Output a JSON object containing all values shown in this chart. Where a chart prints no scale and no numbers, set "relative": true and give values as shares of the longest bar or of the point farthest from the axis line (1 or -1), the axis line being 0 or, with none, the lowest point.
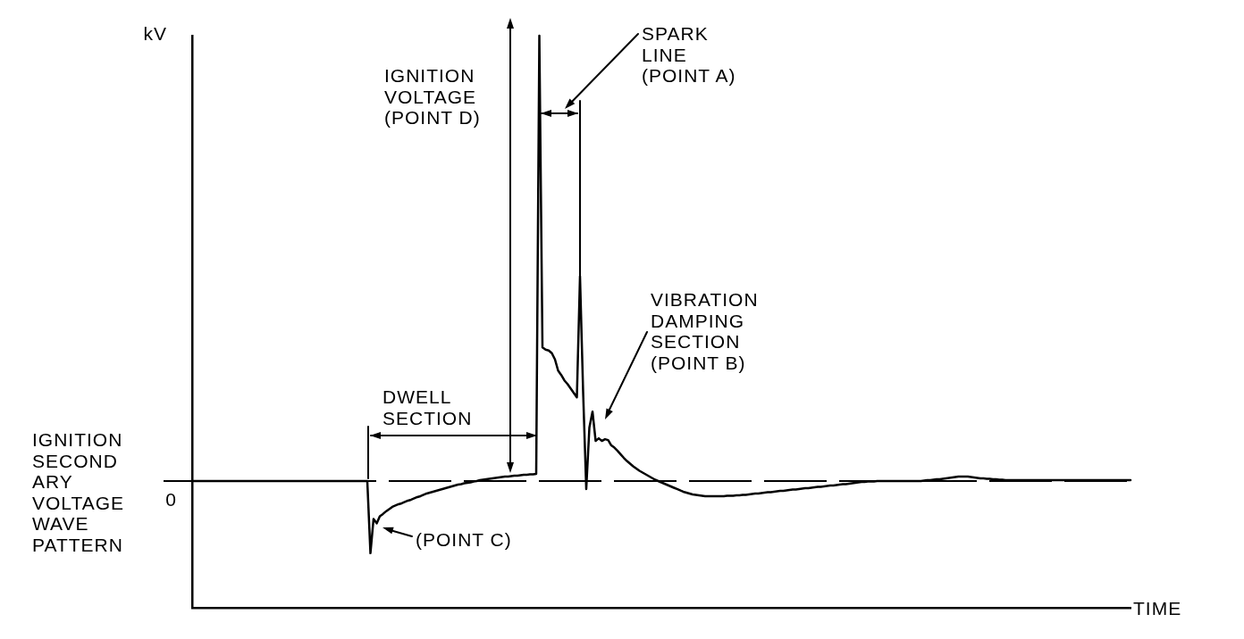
{
  "chart_data": {
    "type": "line",
    "title": "IGNITION\nSECOND\nARY\nVOLTAGE\nWAVE\nPATTERN",
    "xlabel": "TIME",
    "ylabel": "kV",
    "relative": true,
    "marker": "none",
    "categories": [
      null,
      null,
      null,
      null,
      null,
      null,
      null,
      null,
      null,
      null,
      null,
      null,
      null,
      null,
      null,
      null,
      null,
      null,
      null,
      null,
      null,
      null,
      null,
      null,
      null,
      null,
      null,
      null,
      null,
      null,
      null,
      null,
      null,
      null,
      null,
      null,
      null,
      null,
      null,
      null,
      null,
      null,
      null,
      null,
      null,
      null,
      null,
      null,
      null,
      null,
      null,
      null,
      null,
      null,
      null,
      null,
      null,
      null,
      null,
      null,
      null,
      null,
      null,
      null,
      null,
      null,
      null,
      null,
      null,
      null,
      null,
      null,
      null,
      null,
      null,
      null,
      null,
      null,
      null,
      null,
      null,
      null,
      null,
      null,
      null,
      null,
      null,
      null,
      null,
      null,
      null,
      null,
      null,
      null,
      null,
      null,
      null,
      null,
      null,
      null,
      null,
      null,
      null,
      null,
      null,
      null,
      null,
      null,
      null,
      null,
      null,
      null,
      null,
      null,
      null,
      null,
      null,
      null,
      null,
      null,
      null,
      null,
      null,
      null,
      null,
      null,
      null,
      null,
      null,
      null,
      null,
      null,
      null,
      null,
      null,
      null,
      null,
      null,
      null,
      null,
      null,
      null,
      null,
      null,
      null,
      null,
      null,
      null,
      null,
      null,
      null,
      null,
      null,
      null,
      null,
      null,
      null,
      null,
      null,
      null,
      null,
      null,
      null,
      null,
      null,
      null,
      null,
      null,
      null,
      null,
      null,
      null,
      null,
      null,
      null,
      null,
      null,
      null,
      null,
      null,
      null,
      null,
      null,
      null,
      null,
      null,
      null,
      null,
      null,
      null,
      null,
      null,
      null,
      null,
      null,
      null,
      null,
      null,
      null,
      null,
      null,
      null,
      null,
      null,
      null,
      null,
      null,
      null,
      null,
      null,
      null,
      null,
      null,
      null,
      null,
      null,
      null,
      null,
      null,
      null,
      null,
      null,
      null,
      null,
      null,
      null,
      null,
      null,
      null,
      null,
      null,
      null,
      null,
      null,
      null,
      null,
      null,
      null,
      null,
      null,
      null,
      null,
      null,
      null,
      null,
      null,
      null,
      null,
      null,
      null,
      null,
      null,
      null,
      null,
      null,
      null,
      null,
      null,
      null,
      null,
      null,
      null,
      null,
      null,
      null,
      null,
      null,
      null,
      null,
      null,
      null,
      null,
      null,
      null,
      null,
      null,
      null,
      null,
      null,
      null,
      null,
      null,
      null,
      null,
      null,
      null,
      null,
      null,
      null,
      null,
      null,
      null,
      null,
      null,
      null,
      null,
      null,
      null,
      null,
      null,
      null
    ],
    "series": [
      {
        "color": "#000000",
        "values": [
          0,
          0,
          0,
          0,
          0,
          0,
          0,
          0,
          0,
          0,
          0,
          0,
          0,
          0,
          0,
          0,
          0,
          0,
          0,
          0,
          0,
          0,
          0,
          0,
          0,
          0,
          0,
          0,
          0,
          0,
          0,
          0,
          0,
          0,
          0,
          0,
          0,
          0,
          0,
          0,
          0,
          0,
          0,
          0,
          0,
          0,
          0,
          0,
          0,
          0,
          0,
          0,
          0,
          0,
          0,
          0,
          0,
          -0.162,
          -0.085,
          -0.095,
          -0.079,
          -0.074,
          -0.068,
          -0.063,
          -0.058,
          -0.055,
          -0.052,
          -0.05,
          -0.047,
          -0.044,
          -0.042,
          -0.039,
          -0.036,
          -0.034,
          -0.031,
          -0.028,
          -0.026,
          -0.024,
          -0.022,
          -0.02,
          -0.018,
          -0.016,
          -0.014,
          -0.012,
          -0.01,
          -0.008,
          -0.007,
          -0.005,
          -0.004,
          -0.003,
          -0.001,
          0,
          0.002,
          0.003,
          0.004,
          0.005,
          0.006,
          0.007,
          0.008,
          0.009,
          0.01,
          0.01,
          0.011,
          0.012,
          0.012,
          0.013,
          0.014,
          0.014,
          0.015,
          0.015,
          0.016,
          1,
          0.3,
          0.295,
          0.293,
          0.287,
          0.273,
          0.248,
          0.238,
          0.226,
          0.218,
          0.208,
          0.198,
          0.188,
          0.46,
          0.2,
          -0.018,
          0.12,
          0.156,
          0.09,
          0.096,
          0.09,
          0.094,
          0.092,
          0.08,
          0.075,
          0.068,
          0.06,
          0.052,
          0.045,
          0.039,
          0.033,
          0.028,
          0.023,
          0.019,
          0.015,
          0.011,
          0.007,
          0.003,
          0,
          -0.003,
          -0.006,
          -0.009,
          -0.012,
          -0.015,
          -0.018,
          -0.021,
          -0.024,
          -0.026,
          -0.028,
          -0.03,
          -0.031,
          -0.032,
          -0.033,
          -0.034,
          -0.034,
          -0.034,
          -0.034,
          -0.034,
          -0.034,
          -0.034,
          -0.033,
          -0.033,
          -0.033,
          -0.032,
          -0.032,
          -0.031,
          -0.031,
          -0.03,
          -0.029,
          -0.028,
          -0.028,
          -0.027,
          -0.026,
          -0.025,
          -0.025,
          -0.024,
          -0.023,
          -0.022,
          -0.022,
          -0.021,
          -0.02,
          -0.019,
          -0.019,
          -0.018,
          -0.017,
          -0.016,
          -0.016,
          -0.015,
          -0.014,
          -0.013,
          -0.013,
          -0.012,
          -0.011,
          -0.01,
          -0.01,
          -0.009,
          -0.008,
          -0.007,
          -0.007,
          -0.006,
          -0.005,
          -0.004,
          -0.003,
          -0.002,
          -0.002,
          -0.001,
          -0.001,
          -0.001,
          0,
          0,
          0,
          0,
          0,
          0,
          0,
          0,
          0,
          0,
          0,
          0,
          0,
          0,
          0,
          0.001,
          0.002,
          0.002,
          0.003,
          0.004,
          0.004,
          0.005,
          0.006,
          0.007,
          0.008,
          0.009,
          0.01,
          0.01,
          0.01,
          0.01,
          0.009,
          0.008,
          0.007,
          0.006,
          0.006,
          0.005,
          0.005,
          0.004,
          0.004,
          0.003,
          0.003,
          0.002,
          0.002,
          0.002,
          0.002,
          0.002,
          0.002,
          0.002,
          0.002,
          0.002,
          0.002,
          0.002,
          0.002,
          0.002,
          0.002,
          0.002,
          0.002,
          0.002,
          0.002,
          0.002,
          0.002,
          0.002,
          0.002,
          0.002,
          0.002,
          0.002,
          0.002,
          0.002,
          0.002,
          0.002,
          0.002,
          0.002,
          0.002,
          0.002,
          0.002,
          0.002,
          0.002,
          0.002,
          0.002,
          0.002,
          0.002,
          0.002
        ]
      }
    ],
    "ref_lines": [
      {
        "axis": "y",
        "value": 0,
        "line_style": "dashed"
      }
    ],
    "annotations": [
      "IGNITION\nVOLTAGE\n(POINT D)",
      "SPARK\nLINE\n(POINT A)",
      "VIBRATION\nDAMPING\nSECTION\n(POINT B)",
      "DWELL\nSECTION",
      "(POINT C)",
      {
        "text": "0",
        "y": 0
      }
    ]
  }
}
